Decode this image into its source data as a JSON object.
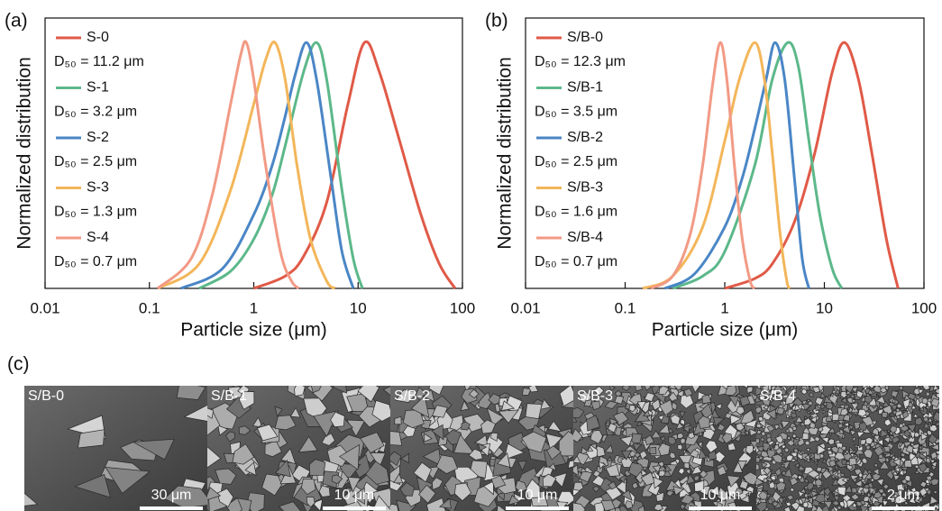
{
  "chart_data": [
    {
      "type": "line",
      "panel_label": "(a)",
      "x_label": "Particle size (μm)",
      "y_label": "Normalized distribution",
      "log_x": true,
      "xlim": [
        0.01,
        100
      ],
      "xticks": [
        0.01,
        0.1,
        1,
        10,
        100
      ],
      "ylim": [
        0,
        1.1
      ],
      "series": [
        {
          "name": "S-0",
          "d50_label": "D₅₀ = 11.2 μm",
          "color": "#e05a47",
          "x": [
            1,
            2,
            3,
            5,
            8,
            11.5,
            16,
            25,
            40,
            60,
            85
          ],
          "values": [
            0,
            0.05,
            0.13,
            0.35,
            0.75,
            1,
            0.88,
            0.6,
            0.3,
            0.1,
            0
          ]
        },
        {
          "name": "S-1",
          "d50_label": "D₅₀ = 3.2 μm",
          "color": "#5cb88a",
          "x": [
            0.3,
            0.6,
            1,
            1.5,
            2,
            3,
            4,
            5,
            7,
            9,
            11
          ],
          "values": [
            0,
            0.07,
            0.2,
            0.38,
            0.58,
            0.88,
            1,
            0.85,
            0.4,
            0.12,
            0
          ]
        },
        {
          "name": "S-2",
          "d50_label": "D₅₀ = 2.5 μm",
          "color": "#4a86c6",
          "x": [
            0.2,
            0.5,
            1,
            1.5,
            2,
            2.5,
            3.2,
            4,
            5.5,
            7,
            9
          ],
          "values": [
            0,
            0.08,
            0.3,
            0.5,
            0.7,
            0.87,
            1,
            0.85,
            0.45,
            0.15,
            0
          ]
        },
        {
          "name": "S-3",
          "d50_label": "D₅₀ = 1.3 μm",
          "color": "#f3b65a",
          "x": [
            0.12,
            0.3,
            0.6,
            1,
            1.3,
            1.6,
            2,
            2.6,
            3.5,
            5,
            6
          ],
          "values": [
            0,
            0.1,
            0.4,
            0.75,
            0.93,
            1,
            0.85,
            0.5,
            0.2,
            0.03,
            0
          ]
        },
        {
          "name": "S-4",
          "d50_label": "D₅₀ = 0.7 μm",
          "color": "#f29a85",
          "x": [
            0.12,
            0.25,
            0.4,
            0.6,
            0.75,
            0.85,
            1,
            1.3,
            1.8,
            2.3,
            2.7
          ],
          "values": [
            0,
            0.12,
            0.38,
            0.75,
            0.95,
            1,
            0.85,
            0.5,
            0.15,
            0.03,
            0
          ]
        }
      ]
    },
    {
      "type": "line",
      "panel_label": "(b)",
      "x_label": "Particle size (μm)",
      "y_label": "Normalized distribution",
      "log_x": true,
      "xlim": [
        0.01,
        100
      ],
      "xticks": [
        0.01,
        0.1,
        1,
        10,
        100
      ],
      "ylim": [
        0,
        1.1
      ],
      "series": [
        {
          "name": "S/B-0",
          "d50_label": "D₅₀ = 12.3 μm",
          "color": "#e05a47",
          "x": [
            1,
            2,
            3,
            5,
            8,
            12,
            16,
            22,
            30,
            42,
            55
          ],
          "values": [
            0,
            0.04,
            0.1,
            0.27,
            0.55,
            0.88,
            1,
            0.85,
            0.55,
            0.2,
            0
          ]
        },
        {
          "name": "S/B-1",
          "d50_label": "D₅₀ = 3.5 μm",
          "color": "#5cb88a",
          "x": [
            0.3,
            0.6,
            1,
            2,
            3,
            4.3,
            5.5,
            7,
            9,
            12,
            15
          ],
          "values": [
            0,
            0.05,
            0.15,
            0.5,
            0.85,
            1,
            0.9,
            0.6,
            0.3,
            0.08,
            0
          ]
        },
        {
          "name": "S/B-2",
          "d50_label": "D₅₀ = 2.5 μm",
          "color": "#4a86c6",
          "x": [
            0.25,
            0.5,
            1,
            1.5,
            2,
            2.6,
            3.2,
            4,
            5,
            6,
            7
          ],
          "values": [
            0,
            0.06,
            0.25,
            0.45,
            0.65,
            0.85,
            1,
            0.85,
            0.45,
            0.12,
            0
          ]
        },
        {
          "name": "S/B-3",
          "d50_label": "D₅₀ = 1.6 μm",
          "color": "#f3b65a",
          "x": [
            0.15,
            0.3,
            0.6,
            1,
            1.4,
            2,
            2.5,
            3,
            3.6,
            4.2,
            4.5
          ],
          "values": [
            0,
            0.05,
            0.25,
            0.6,
            0.85,
            1,
            0.85,
            0.55,
            0.22,
            0.03,
            0
          ]
        },
        {
          "name": "S/B-4",
          "d50_label": "D₅₀ = 0.7 μm",
          "color": "#f29a85",
          "x": [
            0.18,
            0.3,
            0.45,
            0.6,
            0.75,
            0.9,
            1.05,
            1.25,
            1.5,
            1.8,
            2
          ],
          "values": [
            0,
            0.05,
            0.22,
            0.5,
            0.82,
            1,
            0.85,
            0.5,
            0.2,
            0.03,
            0
          ]
        }
      ]
    }
  ],
  "sem_panel": {
    "label": "(c)",
    "images": [
      {
        "name": "S/B-0",
        "scale_bar": "30 μm"
      },
      {
        "name": "S/B-1",
        "scale_bar": "10 μm"
      },
      {
        "name": "S/B-2",
        "scale_bar": "10 μm"
      },
      {
        "name": "S/B-3",
        "scale_bar": "10 μm"
      },
      {
        "name": "S/B-4",
        "scale_bar": "2 μm"
      }
    ]
  }
}
